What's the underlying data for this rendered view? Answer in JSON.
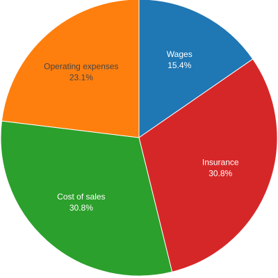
{
  "chart_data": {
    "type": "pie",
    "categories": [
      "Wages",
      "Insurance",
      "Cost of sales",
      "Operating expenses"
    ],
    "values": [
      15.4,
      30.8,
      30.8,
      23.1
    ],
    "value_labels": [
      "15.4%",
      "30.8%",
      "30.8%",
      "23.1%"
    ],
    "colors": [
      "#1f77b4",
      "#d62728",
      "#2ca02c",
      "#ff7f0e"
    ]
  }
}
